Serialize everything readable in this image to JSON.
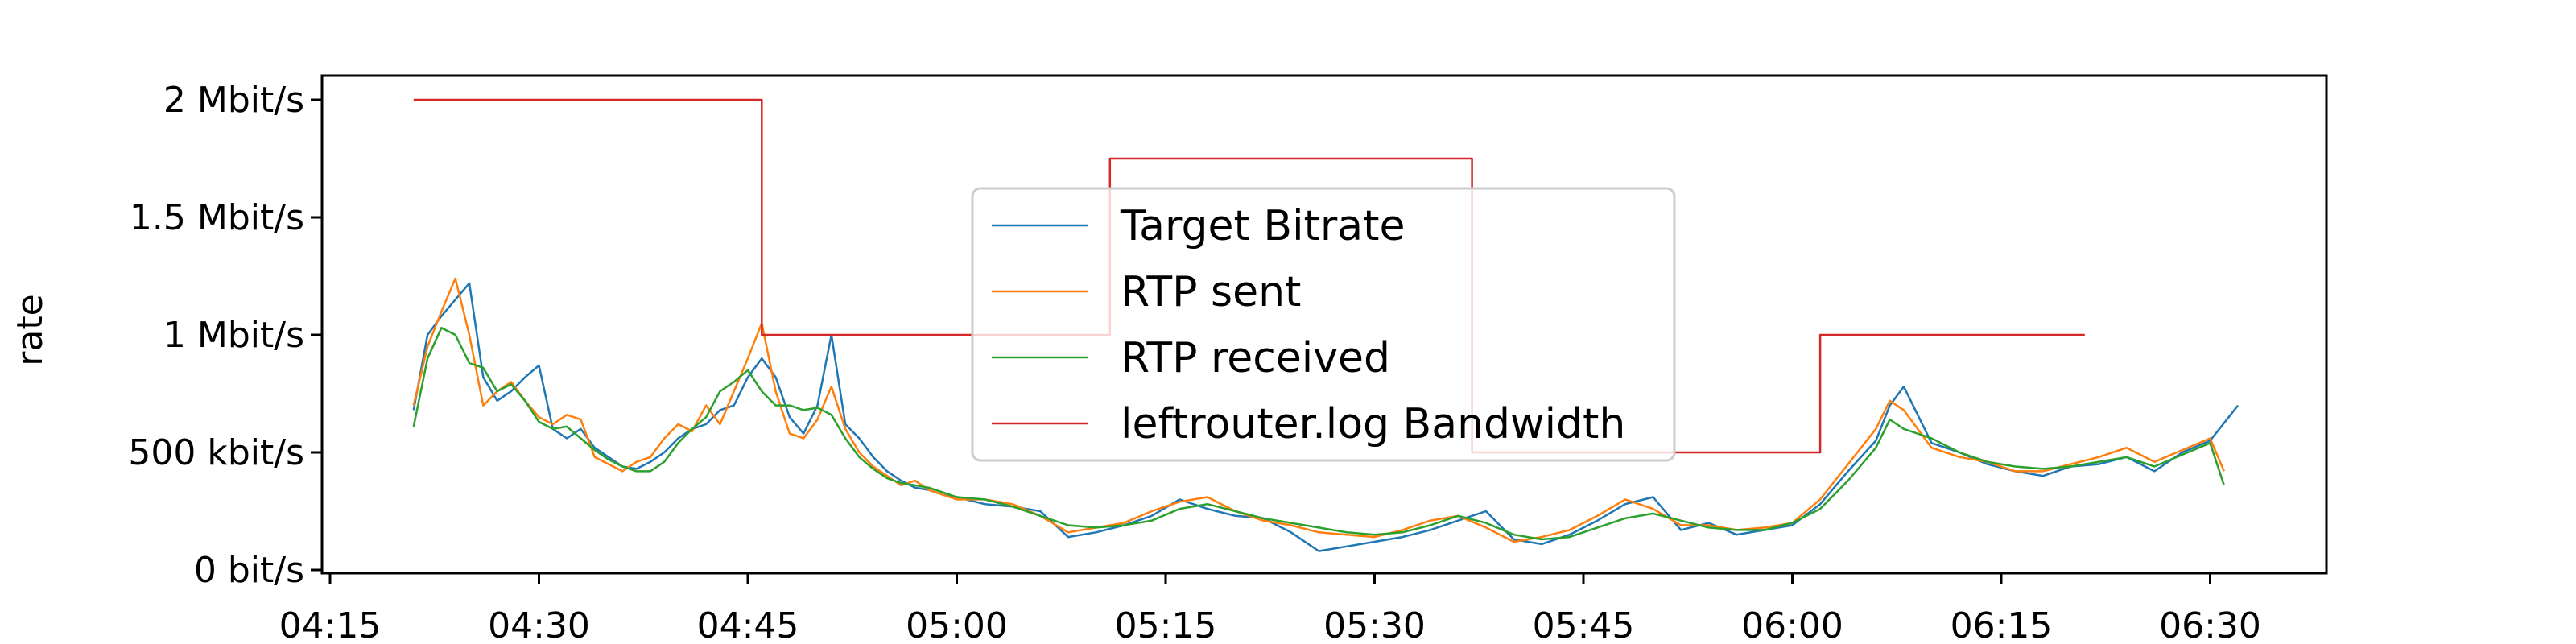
{
  "chart_data": {
    "type": "line",
    "ylabel": "rate",
    "x_ticks": [
      "04:15",
      "04:30",
      "04:45",
      "05:00",
      "05:15",
      "05:30",
      "05:45",
      "06:00",
      "06:15",
      "06:30"
    ],
    "xlim": [
      "04:15",
      "06:32"
    ],
    "y_ticks": [
      {
        "value": 0,
        "label": "0 bit/s"
      },
      {
        "value": 500,
        "label": "500 kbit/s"
      },
      {
        "value": 1000,
        "label": "1 Mbit/s"
      },
      {
        "value": 1500,
        "label": "1.5 Mbit/s"
      },
      {
        "value": 2000,
        "label": "2 Mbit/s"
      }
    ],
    "y_units": "kbit/s",
    "ylim": [
      0,
      2100
    ],
    "grid": false,
    "legend_position": "center",
    "series": [
      {
        "name": "Target Bitrate",
        "color": "#1f77b4",
        "x": [
          "04:21",
          "04:22",
          "04:23",
          "04:24",
          "04:25",
          "04:26",
          "04:27",
          "04:28",
          "04:29",
          "04:30",
          "04:31",
          "04:32",
          "04:33",
          "04:34",
          "04:35",
          "04:36",
          "04:37",
          "04:38",
          "04:39",
          "04:40",
          "04:41",
          "04:42",
          "04:43",
          "04:44",
          "04:45",
          "04:46",
          "04:47",
          "04:48",
          "04:49",
          "04:50",
          "04:51",
          "04:52",
          "04:53",
          "04:54",
          "04:55",
          "04:56",
          "04:57",
          "04:58",
          "04:59",
          "05:00",
          "05:02",
          "05:04",
          "05:06",
          "05:08",
          "05:10",
          "05:12",
          "05:14",
          "05:16",
          "05:18",
          "05:20",
          "05:22",
          "05:24",
          "05:26",
          "05:28",
          "05:30",
          "05:32",
          "05:34",
          "05:36",
          "05:38",
          "05:40",
          "05:42",
          "05:44",
          "05:46",
          "05:48",
          "05:50",
          "05:52",
          "05:54",
          "05:56",
          "05:58",
          "06:00",
          "06:02",
          "06:04",
          "06:06",
          "06:07",
          "06:08",
          "06:10",
          "06:12",
          "06:14",
          "06:16",
          "06:18",
          "06:20",
          "06:22",
          "06:24",
          "06:26",
          "06:28",
          "06:30",
          "06:32"
        ],
        "y": [
          680,
          1000,
          1080,
          1150,
          1220,
          820,
          720,
          760,
          820,
          870,
          600,
          560,
          600,
          520,
          480,
          440,
          430,
          460,
          500,
          560,
          600,
          620,
          680,
          700,
          820,
          900,
          820,
          650,
          580,
          700,
          1000,
          620,
          560,
          480,
          420,
          380,
          350,
          340,
          320,
          310,
          280,
          270,
          250,
          140,
          160,
          190,
          230,
          300,
          260,
          230,
          220,
          160,
          80,
          100,
          120,
          140,
          170,
          210,
          250,
          130,
          110,
          150,
          210,
          280,
          310,
          170,
          200,
          150,
          170,
          190,
          280,
          420,
          550,
          700,
          780,
          540,
          500,
          450,
          420,
          400,
          440,
          450,
          480,
          420,
          500,
          550,
          700
        ]
      },
      {
        "name": "RTP sent",
        "color": "#ff7f0e",
        "x": [
          "04:21",
          "04:22",
          "04:23",
          "04:24",
          "04:25",
          "04:26",
          "04:27",
          "04:28",
          "04:29",
          "04:30",
          "04:31",
          "04:32",
          "04:33",
          "04:34",
          "04:35",
          "04:36",
          "04:37",
          "04:38",
          "04:39",
          "04:40",
          "04:41",
          "04:42",
          "04:43",
          "04:44",
          "04:45",
          "04:46",
          "04:47",
          "04:48",
          "04:49",
          "04:50",
          "04:51",
          "04:52",
          "04:53",
          "04:54",
          "04:55",
          "04:56",
          "04:57",
          "04:58",
          "04:59",
          "05:00",
          "05:02",
          "05:04",
          "05:06",
          "05:08",
          "05:10",
          "05:12",
          "05:14",
          "05:16",
          "05:18",
          "05:20",
          "05:22",
          "05:24",
          "05:26",
          "05:28",
          "05:30",
          "05:32",
          "05:34",
          "05:36",
          "05:38",
          "05:40",
          "05:42",
          "05:44",
          "05:46",
          "05:48",
          "05:50",
          "05:52",
          "05:54",
          "05:56",
          "05:58",
          "06:00",
          "06:02",
          "06:04",
          "06:06",
          "06:07",
          "06:08",
          "06:10",
          "06:12",
          "06:14",
          "06:16",
          "06:18",
          "06:20",
          "06:22",
          "06:24",
          "06:26",
          "06:28",
          "06:30",
          "06:31"
        ],
        "y": [
          700,
          950,
          1100,
          1240,
          1000,
          700,
          760,
          800,
          720,
          650,
          620,
          660,
          640,
          480,
          450,
          420,
          460,
          480,
          560,
          620,
          590,
          700,
          620,
          760,
          900,
          1050,
          760,
          580,
          560,
          640,
          780,
          600,
          500,
          440,
          400,
          360,
          380,
          340,
          320,
          300,
          300,
          280,
          230,
          160,
          180,
          200,
          250,
          290,
          310,
          250,
          210,
          190,
          160,
          150,
          140,
          170,
          210,
          230,
          180,
          120,
          140,
          170,
          230,
          300,
          260,
          190,
          190,
          170,
          180,
          200,
          300,
          450,
          600,
          720,
          680,
          520,
          480,
          460,
          420,
          420,
          450,
          480,
          520,
          460,
          510,
          560,
          420
        ]
      },
      {
        "name": "RTP received",
        "color": "#2ca02c",
        "x": [
          "04:21",
          "04:22",
          "04:23",
          "04:24",
          "04:25",
          "04:26",
          "04:27",
          "04:28",
          "04:29",
          "04:30",
          "04:31",
          "04:32",
          "04:33",
          "04:34",
          "04:35",
          "04:36",
          "04:37",
          "04:38",
          "04:39",
          "04:40",
          "04:41",
          "04:42",
          "04:43",
          "04:44",
          "04:45",
          "04:46",
          "04:47",
          "04:48",
          "04:49",
          "04:50",
          "04:51",
          "04:52",
          "04:53",
          "04:54",
          "04:55",
          "04:56",
          "04:57",
          "04:58",
          "04:59",
          "05:00",
          "05:02",
          "05:04",
          "05:06",
          "05:08",
          "05:10",
          "05:12",
          "05:14",
          "05:16",
          "05:18",
          "05:20",
          "05:22",
          "05:24",
          "05:26",
          "05:28",
          "05:30",
          "05:32",
          "05:34",
          "05:36",
          "05:38",
          "05:40",
          "05:42",
          "05:44",
          "05:46",
          "05:48",
          "05:50",
          "05:52",
          "05:54",
          "05:56",
          "05:58",
          "06:00",
          "06:02",
          "06:04",
          "06:06",
          "06:07",
          "06:08",
          "06:10",
          "06:12",
          "06:14",
          "06:16",
          "06:18",
          "06:20",
          "06:22",
          "06:24",
          "06:26",
          "06:28",
          "06:30",
          "06:31"
        ],
        "y": [
          610,
          900,
          1030,
          1000,
          880,
          860,
          760,
          790,
          720,
          630,
          600,
          610,
          560,
          510,
          470,
          440,
          420,
          420,
          460,
          540,
          600,
          650,
          760,
          800,
          850,
          760,
          700,
          700,
          680,
          690,
          660,
          560,
          480,
          430,
          390,
          370,
          360,
          350,
          330,
          310,
          300,
          270,
          230,
          190,
          180,
          190,
          210,
          260,
          280,
          250,
          220,
          200,
          180,
          160,
          150,
          160,
          190,
          230,
          200,
          150,
          130,
          140,
          180,
          220,
          240,
          210,
          180,
          170,
          170,
          200,
          260,
          380,
          520,
          640,
          600,
          560,
          500,
          460,
          440,
          430,
          440,
          460,
          480,
          440,
          490,
          540,
          360
        ]
      },
      {
        "name": "leftrouter.log Bandwidth",
        "color": "#d62728",
        "step": "post",
        "x": [
          "04:21",
          "04:46",
          "05:11",
          "05:37",
          "06:02",
          "06:21"
        ],
        "y": [
          2000,
          1000,
          1750,
          500,
          1000,
          1000
        ]
      }
    ]
  }
}
